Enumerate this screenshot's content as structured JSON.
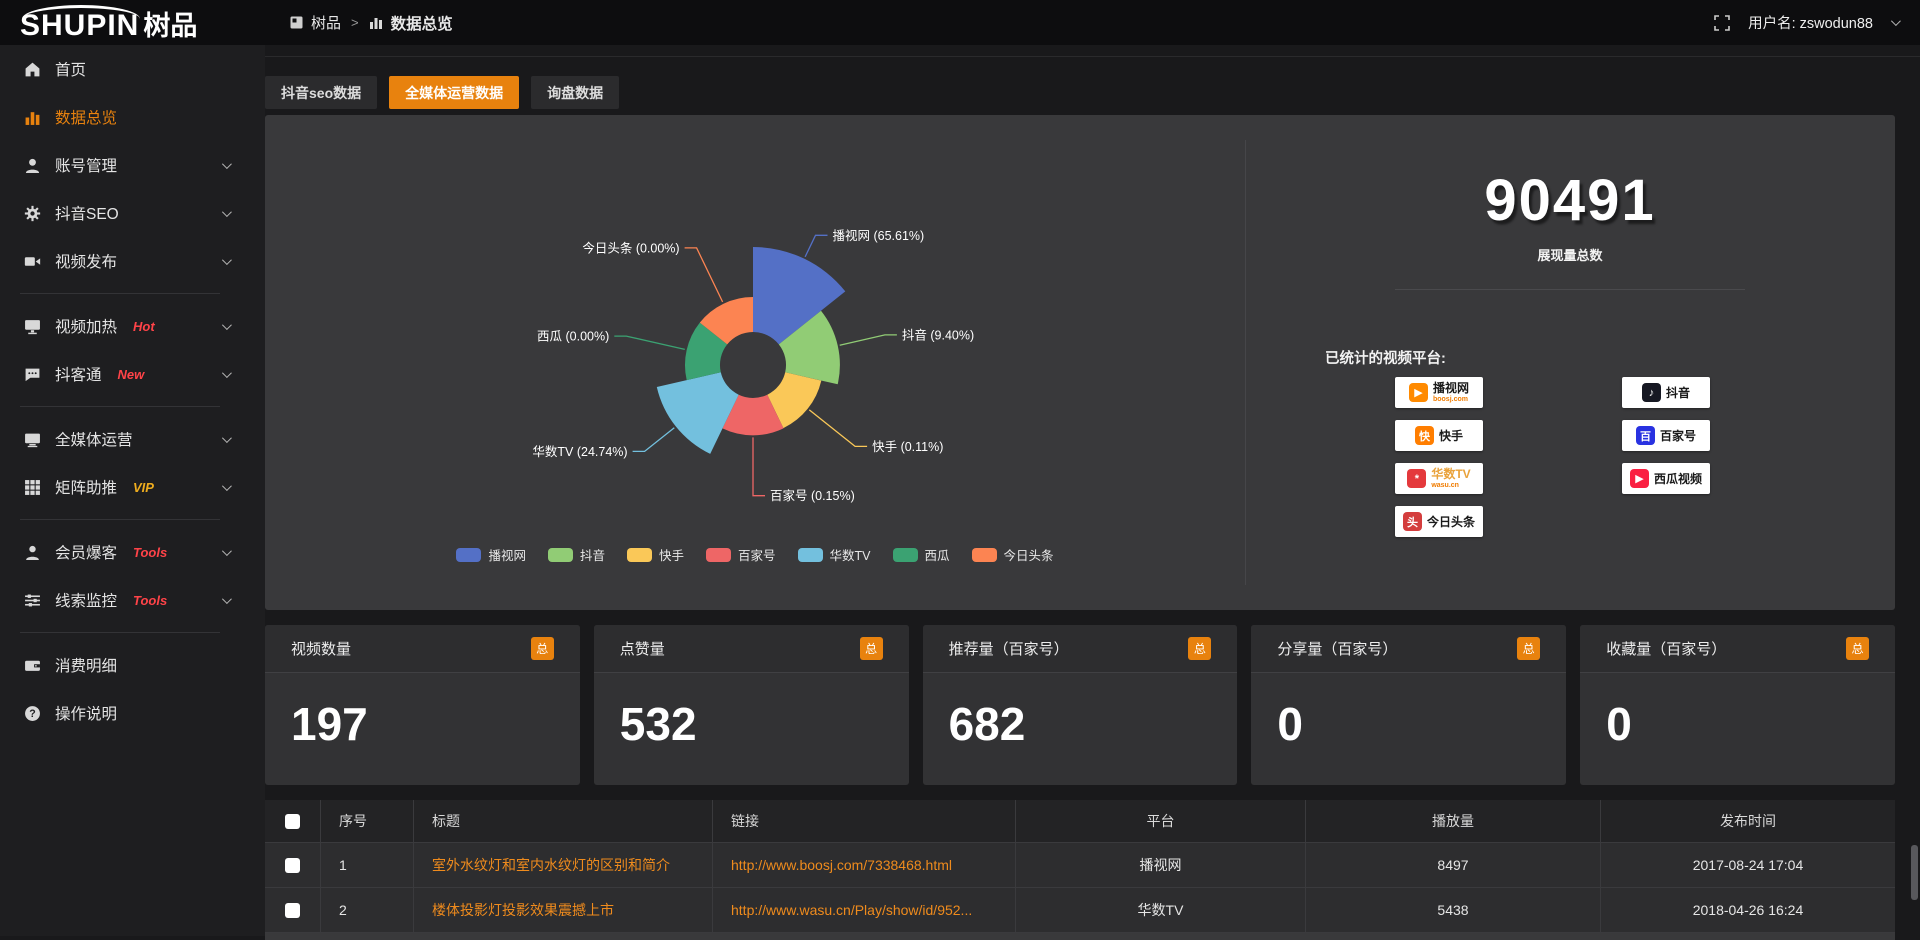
{
  "topbar": {
    "logo_en": "SHUPIN",
    "logo_cn": "树品",
    "breadcrumb_root": "树品",
    "breadcrumb_separator": ">",
    "breadcrumb_current": "数据总览",
    "username_label": "用户名:",
    "username": "zswodun88"
  },
  "sidebar": {
    "items": [
      {
        "label": "首页"
      },
      {
        "label": "数据总览",
        "active": true
      },
      {
        "label": "账号管理"
      },
      {
        "label": "抖音SEO"
      },
      {
        "label": "视频发布"
      },
      {
        "label": "视频加热",
        "tag": "Hot"
      },
      {
        "label": "抖客通",
        "tag": "New"
      },
      {
        "label": "全媒体运营"
      },
      {
        "label": "矩阵助推",
        "tag": "VIP"
      },
      {
        "label": "会员爆客",
        "tag": "Tools"
      },
      {
        "label": "线索监控",
        "tag": "Tools"
      },
      {
        "label": "消费明细"
      },
      {
        "label": "操作说明"
      }
    ]
  },
  "tabs": [
    {
      "label": "抖音seo数据"
    },
    {
      "label": "全媒体运营数据",
      "active": true
    },
    {
      "label": "询盘数据"
    }
  ],
  "chart_data": {
    "type": "pie",
    "variant": "nightingale_rose_area",
    "title": "",
    "categories": [
      "播视网",
      "抖音",
      "快手",
      "百家号",
      "华数TV",
      "西瓜",
      "今日头条"
    ],
    "values_percent": [
      65.61,
      9.4,
      0.11,
      0.15,
      24.74,
      0,
      0
    ],
    "colors": [
      "#5470c6",
      "#91cc75",
      "#fac858",
      "#ee6666",
      "#73c0de",
      "#3ba272",
      "#fc8452"
    ],
    "label_format": "{name} ({value}%)",
    "legend_position": "bottom",
    "start_angle_deg": 90,
    "clockwise": true
  },
  "overview": {
    "total_value": "90491",
    "total_label": "展现量总数",
    "platforms_title": "已统计的视频平台:",
    "platforms_left": [
      {
        "name": "播视网",
        "sub": "boosj.com",
        "glyph": "▶",
        "color": "#ff8a00"
      },
      {
        "name": "快手",
        "sub": "",
        "glyph": "快",
        "color": "#ff7e00"
      },
      {
        "name": "华数TV",
        "sub": "wasu.cn",
        "glyph": "*",
        "color": "#e4393c"
      },
      {
        "name": "今日头条",
        "sub": "",
        "glyph": "头",
        "color": "#d43d3d"
      }
    ],
    "platforms_right": [
      {
        "name": "抖音",
        "sub": "",
        "glyph": "♪",
        "color": "#161823"
      },
      {
        "name": "百家号",
        "sub": "",
        "glyph": "百",
        "color": "#2932e1"
      },
      {
        "name": "西瓜视频",
        "sub": "",
        "glyph": "▶",
        "color": "#fa1f41"
      }
    ]
  },
  "stat_cards": [
    {
      "label": "视频数量",
      "badge": "总",
      "value": "197"
    },
    {
      "label": "点赞量",
      "badge": "总",
      "value": "532"
    },
    {
      "label": "推荐量（百家号）",
      "badge": "总",
      "value": "682"
    },
    {
      "label": "分享量（百家号）",
      "badge": "总",
      "value": "0"
    },
    {
      "label": "收藏量（百家号）",
      "badge": "总",
      "value": "0"
    }
  ],
  "table": {
    "headers": [
      "序号",
      "标题",
      "链接",
      "平台",
      "播放量",
      "发布时间"
    ],
    "rows": [
      {
        "no": "1",
        "title": "室外水纹灯和室内水纹灯的区别和简介",
        "link": "http://www.boosj.com/7338468.html",
        "platform": "播视网",
        "plays": "8497",
        "time": "2017-08-24 17:04"
      },
      {
        "no": "2",
        "title": "楼体投影灯投影效果震撼上市",
        "link": "http://www.wasu.cn/Play/show/id/952...",
        "platform": "华数TV",
        "plays": "5438",
        "time": "2018-04-26 16:24"
      }
    ]
  },
  "colors": {
    "accent_orange": "#e8820e",
    "link_orange": "#ef8b1d",
    "tag_red": "#ff4348",
    "tag_gold": "#efad1e",
    "panel_bg": "#39393b"
  }
}
